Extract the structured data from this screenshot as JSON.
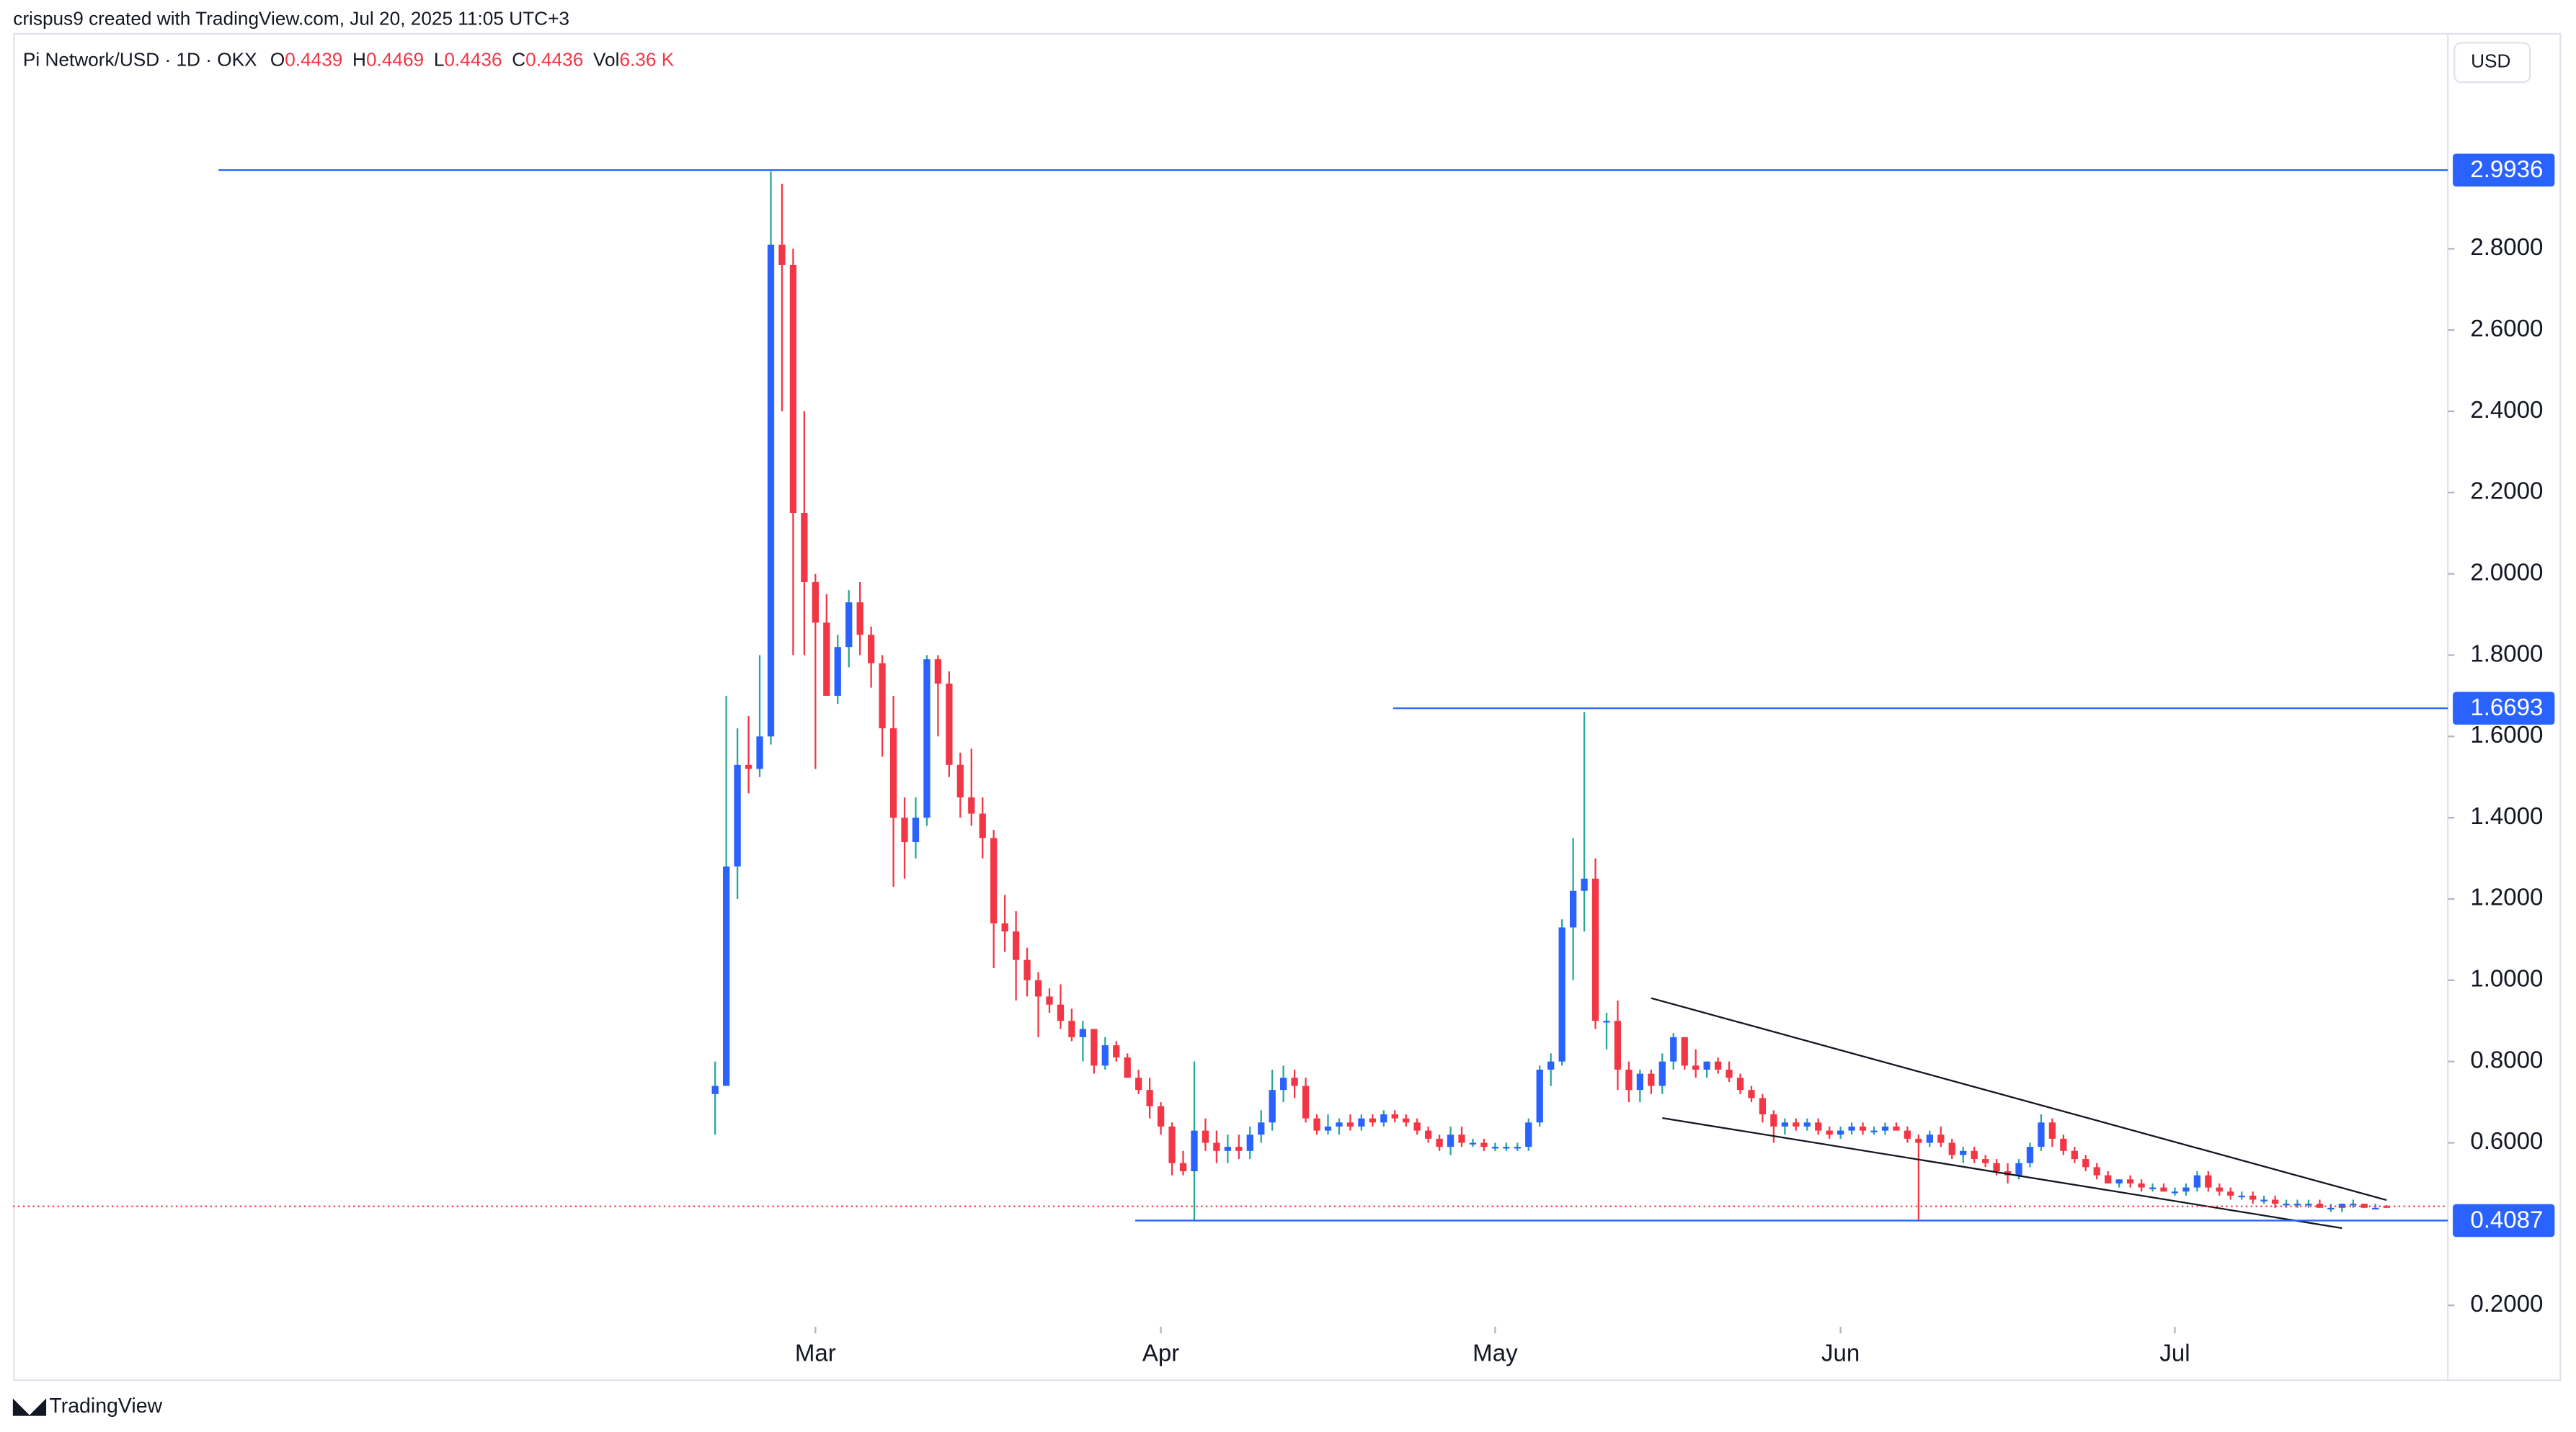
{
  "header": {
    "credit": "crispus9 created with TradingView.com, Jul 20, 2025 11:05 UTC+3"
  },
  "footer": {
    "logo": "TradingView"
  },
  "chart_data": {
    "type": "candlestick",
    "title": "Pi Network/USD · 1D · OKX",
    "ohlc_labels": [
      "O",
      "H",
      "L",
      "C",
      "Vol"
    ],
    "volume": "6.36 K",
    "currency": "USD",
    "up_color": "#2962ff",
    "up_wick_color": "#26a69a",
    "down_color": "#f23645",
    "level_color": "#2962ff",
    "xlim": [
      -63,
      155.5
    ],
    "ylim": [
      0.018,
      3.331
    ],
    "xticks": [
      {
        "value": 9,
        "label": "Mar"
      },
      {
        "value": 40,
        "label": "Apr"
      },
      {
        "value": 70,
        "label": "May"
      },
      {
        "value": 101,
        "label": "Jun"
      },
      {
        "value": 131,
        "label": "Jul"
      }
    ],
    "yticks": [
      {
        "value": 0.2,
        "label": "0.2000"
      },
      {
        "value": 0.6,
        "label": "0.6000"
      },
      {
        "value": 0.8,
        "label": "0.8000"
      },
      {
        "value": 1.0,
        "label": "1.0000"
      },
      {
        "value": 1.2,
        "label": "1.2000"
      },
      {
        "value": 1.4,
        "label": "1.4000"
      },
      {
        "value": 1.6,
        "label": "1.6000"
      },
      {
        "value": 1.8,
        "label": "1.8000"
      },
      {
        "value": 2.0,
        "label": "2.0000"
      },
      {
        "value": 2.2,
        "label": "2.2000"
      },
      {
        "value": 2.4,
        "label": "2.4000"
      },
      {
        "value": 2.6,
        "label": "2.6000"
      },
      {
        "value": 2.8,
        "label": "2.8000"
      }
    ],
    "levels": [
      2.9936,
      1.6693,
      0.4087
    ],
    "trendlines": [
      [
        [
          84,
          0.956
        ],
        [
          150,
          0.459
        ]
      ],
      [
        [
          85,
          0.661
        ],
        [
          146,
          0.39
        ]
      ]
    ],
    "candles": [
      [
        0.72,
        0.8,
        0.62,
        0.74
      ],
      [
        0.74,
        1.7,
        0.74,
        1.28
      ],
      [
        1.28,
        1.62,
        1.2,
        1.53
      ],
      [
        1.53,
        1.65,
        1.46,
        1.52
      ],
      [
        1.52,
        1.8,
        1.5,
        1.6
      ],
      [
        1.6,
        2.99,
        1.58,
        2.81
      ],
      [
        2.81,
        2.96,
        2.4,
        2.76
      ],
      [
        2.76,
        2.8,
        1.8,
        2.15
      ],
      [
        2.15,
        2.4,
        1.8,
        1.98
      ],
      [
        1.98,
        2.0,
        1.52,
        1.88
      ],
      [
        1.88,
        1.95,
        1.7,
        1.7
      ],
      [
        1.7,
        1.85,
        1.68,
        1.82
      ],
      [
        1.82,
        1.96,
        1.77,
        1.93
      ],
      [
        1.93,
        1.98,
        1.8,
        1.85
      ],
      [
        1.85,
        1.87,
        1.72,
        1.78
      ],
      [
        1.78,
        1.8,
        1.55,
        1.62
      ],
      [
        1.62,
        1.7,
        1.23,
        1.4
      ],
      [
        1.4,
        1.45,
        1.25,
        1.34
      ],
      [
        1.34,
        1.45,
        1.3,
        1.4
      ],
      [
        1.4,
        1.8,
        1.38,
        1.79
      ],
      [
        1.79,
        1.8,
        1.6,
        1.73
      ],
      [
        1.73,
        1.76,
        1.5,
        1.53
      ],
      [
        1.53,
        1.56,
        1.4,
        1.45
      ],
      [
        1.45,
        1.57,
        1.38,
        1.41
      ],
      [
        1.41,
        1.45,
        1.3,
        1.35
      ],
      [
        1.35,
        1.37,
        1.03,
        1.14
      ],
      [
        1.14,
        1.21,
        1.07,
        1.12
      ],
      [
        1.12,
        1.17,
        0.95,
        1.05
      ],
      [
        1.05,
        1.08,
        0.96,
        1.0
      ],
      [
        1.0,
        1.02,
        0.86,
        0.96
      ],
      [
        0.96,
        0.98,
        0.92,
        0.94
      ],
      [
        0.94,
        0.99,
        0.88,
        0.9
      ],
      [
        0.9,
        0.93,
        0.85,
        0.86
      ],
      [
        0.86,
        0.9,
        0.8,
        0.88
      ],
      [
        0.88,
        0.88,
        0.77,
        0.79
      ],
      [
        0.79,
        0.86,
        0.78,
        0.84
      ],
      [
        0.84,
        0.85,
        0.8,
        0.81
      ],
      [
        0.81,
        0.82,
        0.76,
        0.76
      ],
      [
        0.76,
        0.78,
        0.72,
        0.73
      ],
      [
        0.73,
        0.76,
        0.66,
        0.69
      ],
      [
        0.69,
        0.7,
        0.62,
        0.64
      ],
      [
        0.64,
        0.65,
        0.52,
        0.55
      ],
      [
        0.55,
        0.58,
        0.52,
        0.53
      ],
      [
        0.53,
        0.8,
        0.41,
        0.63
      ],
      [
        0.63,
        0.66,
        0.58,
        0.6
      ],
      [
        0.6,
        0.63,
        0.55,
        0.58
      ],
      [
        0.58,
        0.62,
        0.55,
        0.59
      ],
      [
        0.59,
        0.62,
        0.56,
        0.58
      ],
      [
        0.58,
        0.64,
        0.56,
        0.62
      ],
      [
        0.62,
        0.68,
        0.6,
        0.65
      ],
      [
        0.65,
        0.78,
        0.63,
        0.73
      ],
      [
        0.73,
        0.79,
        0.7,
        0.76
      ],
      [
        0.76,
        0.78,
        0.71,
        0.74
      ],
      [
        0.74,
        0.76,
        0.65,
        0.66
      ],
      [
        0.66,
        0.67,
        0.62,
        0.63
      ],
      [
        0.63,
        0.67,
        0.62,
        0.64
      ],
      [
        0.64,
        0.66,
        0.62,
        0.65
      ],
      [
        0.65,
        0.67,
        0.63,
        0.64
      ],
      [
        0.64,
        0.67,
        0.63,
        0.66
      ],
      [
        0.66,
        0.67,
        0.64,
        0.65
      ],
      [
        0.65,
        0.68,
        0.64,
        0.67
      ],
      [
        0.67,
        0.68,
        0.65,
        0.66
      ],
      [
        0.66,
        0.67,
        0.64,
        0.65
      ],
      [
        0.65,
        0.66,
        0.62,
        0.63
      ],
      [
        0.63,
        0.64,
        0.6,
        0.61
      ],
      [
        0.61,
        0.62,
        0.58,
        0.59
      ],
      [
        0.59,
        0.64,
        0.57,
        0.62
      ],
      [
        0.62,
        0.64,
        0.59,
        0.6
      ],
      [
        0.6,
        0.61,
        0.59,
        0.6
      ],
      [
        0.6,
        0.61,
        0.58,
        0.59
      ],
      [
        0.59,
        0.6,
        0.58,
        0.59
      ],
      [
        0.59,
        0.6,
        0.58,
        0.59
      ],
      [
        0.59,
        0.6,
        0.58,
        0.59
      ],
      [
        0.59,
        0.66,
        0.58,
        0.65
      ],
      [
        0.65,
        0.79,
        0.64,
        0.78
      ],
      [
        0.78,
        0.82,
        0.74,
        0.8
      ],
      [
        0.8,
        1.15,
        0.79,
        1.13
      ],
      [
        1.13,
        1.35,
        1.0,
        1.22
      ],
      [
        1.22,
        1.66,
        1.12,
        1.25
      ],
      [
        1.25,
        1.3,
        0.88,
        0.9
      ],
      [
        0.9,
        0.92,
        0.83,
        0.9
      ],
      [
        0.9,
        0.95,
        0.73,
        0.78
      ],
      [
        0.78,
        0.8,
        0.7,
        0.73
      ],
      [
        0.73,
        0.78,
        0.7,
        0.77
      ],
      [
        0.77,
        0.78,
        0.72,
        0.74
      ],
      [
        0.74,
        0.82,
        0.72,
        0.8
      ],
      [
        0.8,
        0.87,
        0.78,
        0.86
      ],
      [
        0.86,
        0.86,
        0.78,
        0.79
      ],
      [
        0.79,
        0.83,
        0.76,
        0.78
      ],
      [
        0.78,
        0.8,
        0.76,
        0.8
      ],
      [
        0.8,
        0.81,
        0.77,
        0.78
      ],
      [
        0.78,
        0.8,
        0.75,
        0.76
      ],
      [
        0.76,
        0.77,
        0.72,
        0.73
      ],
      [
        0.73,
        0.74,
        0.7,
        0.71
      ],
      [
        0.71,
        0.72,
        0.65,
        0.67
      ],
      [
        0.67,
        0.68,
        0.6,
        0.64
      ],
      [
        0.64,
        0.66,
        0.62,
        0.65
      ],
      [
        0.65,
        0.66,
        0.63,
        0.64
      ],
      [
        0.64,
        0.66,
        0.63,
        0.65
      ],
      [
        0.65,
        0.66,
        0.62,
        0.63
      ],
      [
        0.63,
        0.64,
        0.61,
        0.62
      ],
      [
        0.62,
        0.64,
        0.61,
        0.63
      ],
      [
        0.63,
        0.65,
        0.62,
        0.64
      ],
      [
        0.64,
        0.65,
        0.62,
        0.63
      ],
      [
        0.63,
        0.64,
        0.62,
        0.63
      ],
      [
        0.63,
        0.65,
        0.62,
        0.64
      ],
      [
        0.64,
        0.65,
        0.63,
        0.63
      ],
      [
        0.63,
        0.64,
        0.6,
        0.61
      ],
      [
        0.61,
        0.62,
        0.41,
        0.6
      ],
      [
        0.6,
        0.63,
        0.59,
        0.62
      ],
      [
        0.62,
        0.64,
        0.59,
        0.6
      ],
      [
        0.6,
        0.61,
        0.56,
        0.57
      ],
      [
        0.57,
        0.59,
        0.55,
        0.58
      ],
      [
        0.58,
        0.59,
        0.55,
        0.56
      ],
      [
        0.56,
        0.57,
        0.54,
        0.55
      ],
      [
        0.55,
        0.56,
        0.52,
        0.53
      ],
      [
        0.53,
        0.55,
        0.5,
        0.52
      ],
      [
        0.52,
        0.56,
        0.51,
        0.55
      ],
      [
        0.55,
        0.6,
        0.54,
        0.59
      ],
      [
        0.59,
        0.67,
        0.58,
        0.65
      ],
      [
        0.65,
        0.66,
        0.59,
        0.61
      ],
      [
        0.61,
        0.62,
        0.57,
        0.58
      ],
      [
        0.58,
        0.59,
        0.55,
        0.56
      ],
      [
        0.56,
        0.57,
        0.53,
        0.54
      ],
      [
        0.54,
        0.55,
        0.51,
        0.52
      ],
      [
        0.52,
        0.53,
        0.5,
        0.5
      ],
      [
        0.5,
        0.51,
        0.49,
        0.51
      ],
      [
        0.51,
        0.52,
        0.49,
        0.5
      ],
      [
        0.5,
        0.51,
        0.48,
        0.49
      ],
      [
        0.49,
        0.5,
        0.48,
        0.49
      ],
      [
        0.49,
        0.5,
        0.48,
        0.48
      ],
      [
        0.48,
        0.49,
        0.47,
        0.48
      ],
      [
        0.48,
        0.5,
        0.47,
        0.49
      ],
      [
        0.49,
        0.53,
        0.48,
        0.52
      ],
      [
        0.52,
        0.53,
        0.48,
        0.49
      ],
      [
        0.49,
        0.5,
        0.47,
        0.48
      ],
      [
        0.48,
        0.49,
        0.46,
        0.47
      ],
      [
        0.47,
        0.48,
        0.46,
        0.47
      ],
      [
        0.47,
        0.48,
        0.45,
        0.46
      ],
      [
        0.46,
        0.47,
        0.45,
        0.46
      ],
      [
        0.46,
        0.47,
        0.44,
        0.45
      ],
      [
        0.45,
        0.46,
        0.44,
        0.45
      ],
      [
        0.45,
        0.46,
        0.44,
        0.45
      ],
      [
        0.45,
        0.46,
        0.44,
        0.45
      ],
      [
        0.45,
        0.46,
        0.44,
        0.44
      ],
      [
        0.44,
        0.45,
        0.43,
        0.44
      ],
      [
        0.44,
        0.45,
        0.43,
        0.45
      ],
      [
        0.45,
        0.46,
        0.44,
        0.45
      ],
      [
        0.45,
        0.45,
        0.44,
        0.44
      ],
      [
        0.44,
        0.45,
        0.44,
        0.44
      ],
      [
        0.4439,
        0.4469,
        0.4436,
        0.4436
      ]
    ]
  }
}
